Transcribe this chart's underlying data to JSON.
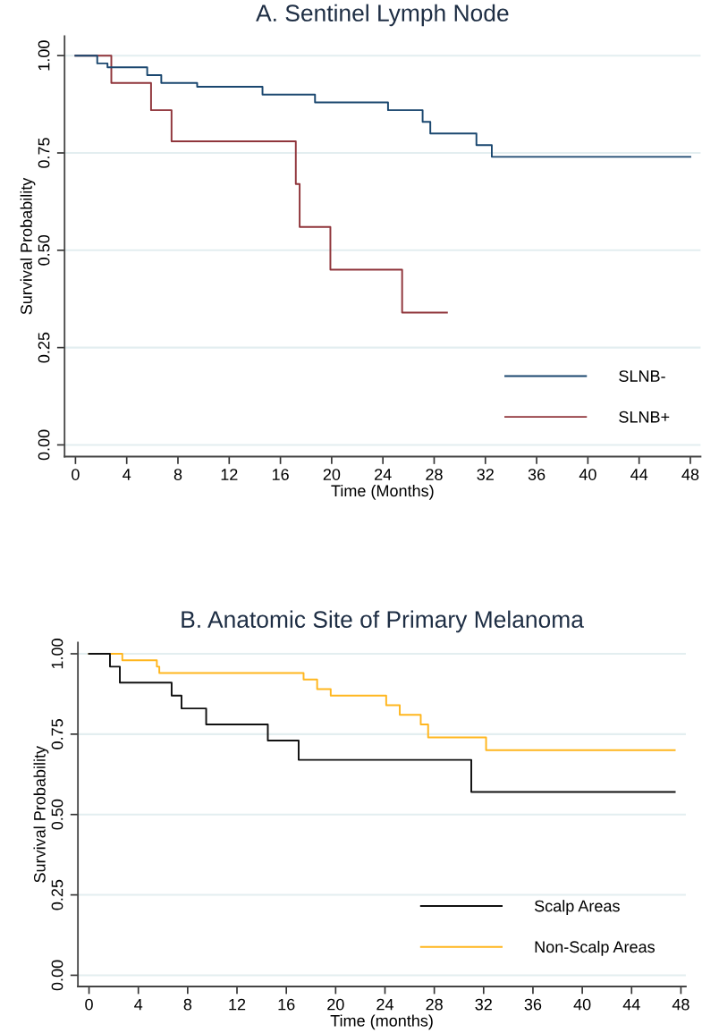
{
  "chart_data": [
    {
      "type": "step",
      "title": "A. Sentinel Lymph Node",
      "xlabel": "Time (Months)",
      "ylabel": "Survival Probability",
      "xlim": [
        -0.85,
        48.8
      ],
      "xticks": [
        0,
        4,
        8,
        12,
        16,
        20,
        24,
        28,
        32,
        36,
        40,
        44,
        48
      ],
      "ylim": [
        -0.03,
        1.05
      ],
      "yticks": [
        {
          "value": 0,
          "label": "0.00"
        },
        {
          "value": 0.25,
          "label": "0.25"
        },
        {
          "value": 0.5,
          "label": "0.50"
        },
        {
          "value": 0.75,
          "label": "0.75"
        },
        {
          "value": 1,
          "label": "1.00"
        }
      ],
      "grid": "y",
      "legend": "bottom right",
      "line_style": "solid",
      "marker": "none",
      "series": [
        {
          "name": "SLNB-",
          "color": "#1a476f",
          "x": [
            0,
            1.7,
            2.5,
            5.6,
            6.7,
            9.5,
            14.6,
            18.7,
            24.4,
            27.1,
            27.7,
            31.3,
            32.5,
            48
          ],
          "values": [
            1.0,
            0.98,
            0.97,
            0.95,
            0.93,
            0.92,
            0.9,
            0.88,
            0.86,
            0.83,
            0.8,
            0.77,
            0.74,
            0.74
          ]
        },
        {
          "name": "SLNB+",
          "color": "#90353b",
          "x": [
            0,
            2.8,
            5.9,
            7.5,
            17.2,
            17.5,
            19.9,
            25.5,
            29.0
          ],
          "values": [
            1.0,
            0.93,
            0.86,
            0.78,
            0.67,
            0.56,
            0.45,
            0.34,
            0.34
          ]
        }
      ]
    },
    {
      "type": "step",
      "title": "B. Anatomic Site of Primary Melanoma",
      "xlabel": "Time (months)",
      "ylabel": "Survival Probability",
      "xlim": [
        -0.9,
        48.4
      ],
      "xticks": [
        0,
        4,
        8,
        12,
        16,
        20,
        24,
        28,
        32,
        36,
        40,
        44,
        48
      ],
      "ylim": [
        -0.035,
        1.035
      ],
      "yticks": [
        {
          "value": 0,
          "label": "0.00"
        },
        {
          "value": 0.25,
          "label": "0.25"
        },
        {
          "value": 0.5,
          "label": "0.50"
        },
        {
          "value": 0.75,
          "label": "0.75"
        },
        {
          "value": 1,
          "label": "1.00"
        }
      ],
      "grid": "y",
      "legend": "bottom right",
      "line_style": "solid",
      "marker": "none",
      "series": [
        {
          "name": "Scalp Areas",
          "color": "#111111",
          "x": [
            0,
            1.7,
            2.5,
            6.7,
            7.5,
            9.5,
            14.5,
            17.0,
            31.0,
            47.5
          ],
          "values": [
            1.0,
            0.96,
            0.91,
            0.87,
            0.83,
            0.78,
            0.73,
            0.67,
            0.57,
            0.57
          ]
        },
        {
          "name": "Non-Scalp Areas",
          "color": "#ffb61e",
          "x": [
            0,
            2.7,
            5.5,
            5.7,
            17.4,
            18.5,
            19.6,
            24.1,
            25.2,
            26.9,
            27.5,
            32.2,
            47.5
          ],
          "values": [
            1.0,
            0.98,
            0.96,
            0.94,
            0.92,
            0.89,
            0.87,
            0.84,
            0.81,
            0.78,
            0.74,
            0.7,
            0.7
          ]
        }
      ]
    }
  ]
}
